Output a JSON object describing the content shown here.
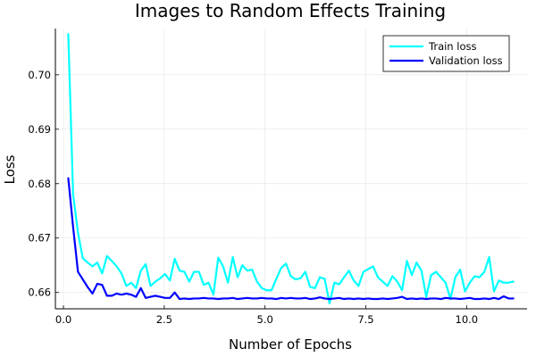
{
  "chart_data": {
    "type": "line",
    "title": "Images to Random Effects Training",
    "xlabel": "Number of Epochs",
    "ylabel": "Loss",
    "xlim": [
      -0.2,
      11.5
    ],
    "ylim": [
      0.657,
      0.7085
    ],
    "xticks": [
      0,
      2.5,
      5,
      7.5,
      10
    ],
    "xtick_labels": [
      "0.0",
      "2.5",
      "5.0",
      "7.5",
      "10.0"
    ],
    "yticks": [
      0.66,
      0.67,
      0.68,
      0.69,
      0.7
    ],
    "ytick_labels": [
      "0.66",
      "0.67",
      "0.68",
      "0.69",
      "0.70"
    ],
    "grid": true,
    "legend_position": "top-right",
    "series": [
      {
        "name": "Train loss",
        "color": "#00ffff",
        "x": [
          0.12,
          0.24,
          0.36,
          0.48,
          0.6,
          0.72,
          0.84,
          0.96,
          1.08,
          1.2,
          1.32,
          1.44,
          1.56,
          1.68,
          1.8,
          1.92,
          2.04,
          2.16,
          2.28,
          2.4,
          2.52,
          2.64,
          2.76,
          2.88,
          3.0,
          3.12,
          3.24,
          3.36,
          3.48,
          3.6,
          3.72,
          3.84,
          3.96,
          4.08,
          4.2,
          4.32,
          4.44,
          4.56,
          4.68,
          4.8,
          4.92,
          5.04,
          5.16,
          5.28,
          5.4,
          5.52,
          5.64,
          5.76,
          5.88,
          6.0,
          6.12,
          6.24,
          6.36,
          6.48,
          6.6,
          6.72,
          6.84,
          6.96,
          7.08,
          7.2,
          7.32,
          7.44,
          7.56,
          7.68,
          7.8,
          7.92,
          8.04,
          8.16,
          8.28,
          8.4,
          8.52,
          8.64,
          8.76,
          8.88,
          9.0,
          9.12,
          9.24,
          9.36,
          9.48,
          9.6,
          9.72,
          9.84,
          9.96,
          10.08,
          10.2,
          10.32,
          10.44,
          10.56,
          10.68,
          10.8,
          10.92,
          11.04,
          11.16
        ],
        "values": [
          0.7075,
          0.678,
          0.671,
          0.6663,
          0.6655,
          0.6648,
          0.6655,
          0.6635,
          0.6667,
          0.6658,
          0.6648,
          0.6635,
          0.6612,
          0.6618,
          0.6608,
          0.664,
          0.6652,
          0.6612,
          0.662,
          0.6626,
          0.6634,
          0.6622,
          0.6662,
          0.664,
          0.6638,
          0.662,
          0.6638,
          0.6638,
          0.6614,
          0.6618,
          0.6596,
          0.6664,
          0.6648,
          0.6618,
          0.6665,
          0.6628,
          0.665,
          0.664,
          0.6642,
          0.662,
          0.6608,
          0.6604,
          0.6604,
          0.6625,
          0.6645,
          0.6653,
          0.663,
          0.6624,
          0.6626,
          0.6638,
          0.661,
          0.6608,
          0.6628,
          0.6625,
          0.658,
          0.6618,
          0.6615,
          0.6628,
          0.664,
          0.6622,
          0.6612,
          0.6638,
          0.6643,
          0.6648,
          0.6628,
          0.662,
          0.6612,
          0.663,
          0.662,
          0.6604,
          0.6658,
          0.6632,
          0.6655,
          0.664,
          0.6592,
          0.6632,
          0.6638,
          0.6628,
          0.6618,
          0.6588,
          0.6628,
          0.6642,
          0.6602,
          0.6618,
          0.663,
          0.6628,
          0.6638,
          0.6665,
          0.6602,
          0.6622,
          0.6618,
          0.6618,
          0.662
        ]
      },
      {
        "name": "Validation loss",
        "color": "#0000ff",
        "x": [
          0.12,
          0.24,
          0.36,
          0.48,
          0.6,
          0.72,
          0.84,
          0.96,
          1.08,
          1.2,
          1.32,
          1.44,
          1.56,
          1.68,
          1.8,
          1.92,
          2.04,
          2.16,
          2.28,
          2.4,
          2.52,
          2.64,
          2.76,
          2.88,
          3.0,
          3.12,
          3.24,
          3.36,
          3.48,
          3.6,
          3.72,
          3.84,
          3.96,
          4.08,
          4.2,
          4.32,
          4.44,
          4.56,
          4.68,
          4.8,
          4.92,
          5.04,
          5.16,
          5.28,
          5.4,
          5.52,
          5.64,
          5.76,
          5.88,
          6.0,
          6.12,
          6.24,
          6.36,
          6.48,
          6.6,
          6.72,
          6.84,
          6.96,
          7.08,
          7.2,
          7.32,
          7.44,
          7.56,
          7.68,
          7.8,
          7.92,
          8.04,
          8.16,
          8.28,
          8.4,
          8.52,
          8.64,
          8.76,
          8.88,
          9.0,
          9.12,
          9.24,
          9.36,
          9.48,
          9.6,
          9.72,
          9.84,
          9.96,
          10.08,
          10.2,
          10.32,
          10.44,
          10.56,
          10.68,
          10.8,
          10.92,
          11.04,
          11.16
        ],
        "values": [
          0.681,
          0.672,
          0.6638,
          0.6624,
          0.661,
          0.6598,
          0.6616,
          0.6614,
          0.6594,
          0.6594,
          0.6598,
          0.6596,
          0.6598,
          0.6596,
          0.6592,
          0.6608,
          0.659,
          0.6592,
          0.6594,
          0.6592,
          0.659,
          0.659,
          0.66,
          0.6588,
          0.6589,
          0.6588,
          0.6589,
          0.6589,
          0.659,
          0.6589,
          0.6589,
          0.6588,
          0.6589,
          0.6589,
          0.659,
          0.6588,
          0.6589,
          0.659,
          0.6589,
          0.6589,
          0.659,
          0.6589,
          0.6589,
          0.6588,
          0.659,
          0.6589,
          0.659,
          0.6589,
          0.6589,
          0.659,
          0.6588,
          0.6589,
          0.6591,
          0.6589,
          0.6588,
          0.6589,
          0.659,
          0.6588,
          0.6589,
          0.6588,
          0.6589,
          0.6588,
          0.6589,
          0.6588,
          0.6588,
          0.6589,
          0.6588,
          0.6589,
          0.659,
          0.6592,
          0.6588,
          0.6589,
          0.6588,
          0.6589,
          0.6588,
          0.6589,
          0.6589,
          0.6588,
          0.659,
          0.6589,
          0.6589,
          0.6588,
          0.6589,
          0.659,
          0.6588,
          0.6588,
          0.6589,
          0.6588,
          0.659,
          0.6588,
          0.6593,
          0.6589,
          0.6589
        ]
      }
    ]
  }
}
